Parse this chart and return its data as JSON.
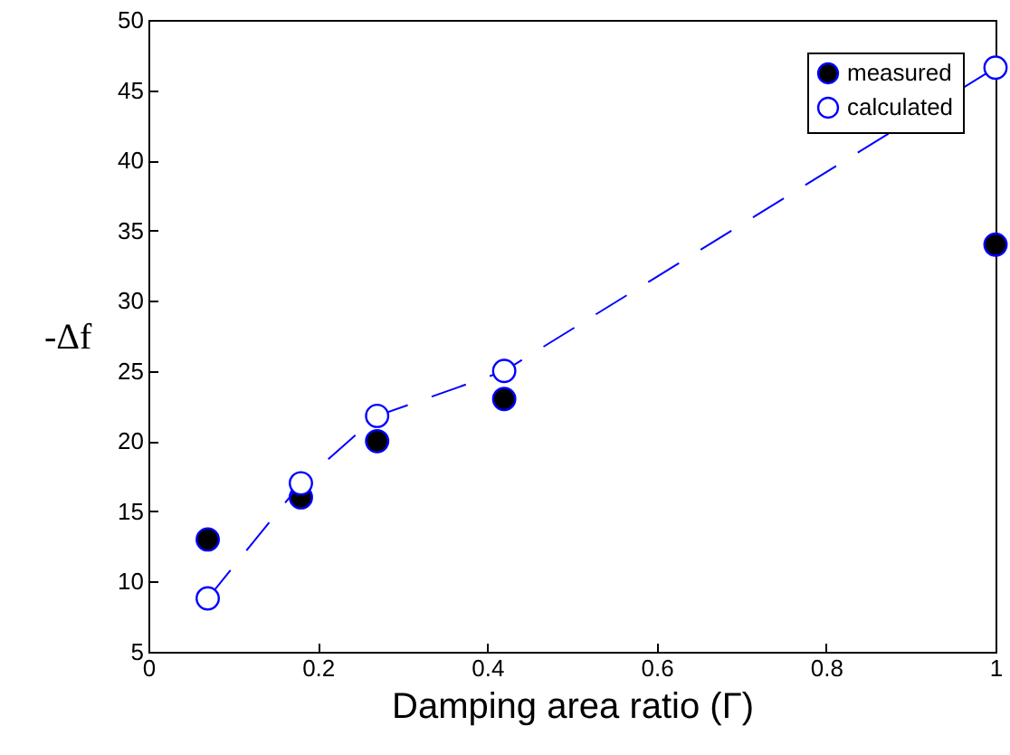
{
  "chart_data": {
    "type": "scatter",
    "xlabel": "Damping area ratio (Γ)",
    "ylabel": "-Δf",
    "x": [
      0.07,
      0.18,
      0.27,
      0.42,
      1.0
    ],
    "series": [
      {
        "name": "measured",
        "color": "#000000",
        "marker": "circle",
        "values": [
          13,
          16,
          20,
          23,
          34
        ]
      },
      {
        "name": "calculated",
        "type": "line",
        "color": "#0000ff",
        "marker": "circle",
        "line_style": "dashed",
        "values": [
          8.8,
          17,
          21.8,
          25,
          46.6
        ]
      }
    ],
    "xlim": [
      0,
      1
    ],
    "xticks": [
      0,
      0.2,
      0.4,
      0.6,
      0.8,
      1
    ],
    "ylim": [
      5,
      50
    ],
    "yticks": [
      5,
      10,
      15,
      20,
      25,
      30,
      35,
      40,
      45,
      50
    ],
    "grid": false,
    "legend": "top right"
  }
}
